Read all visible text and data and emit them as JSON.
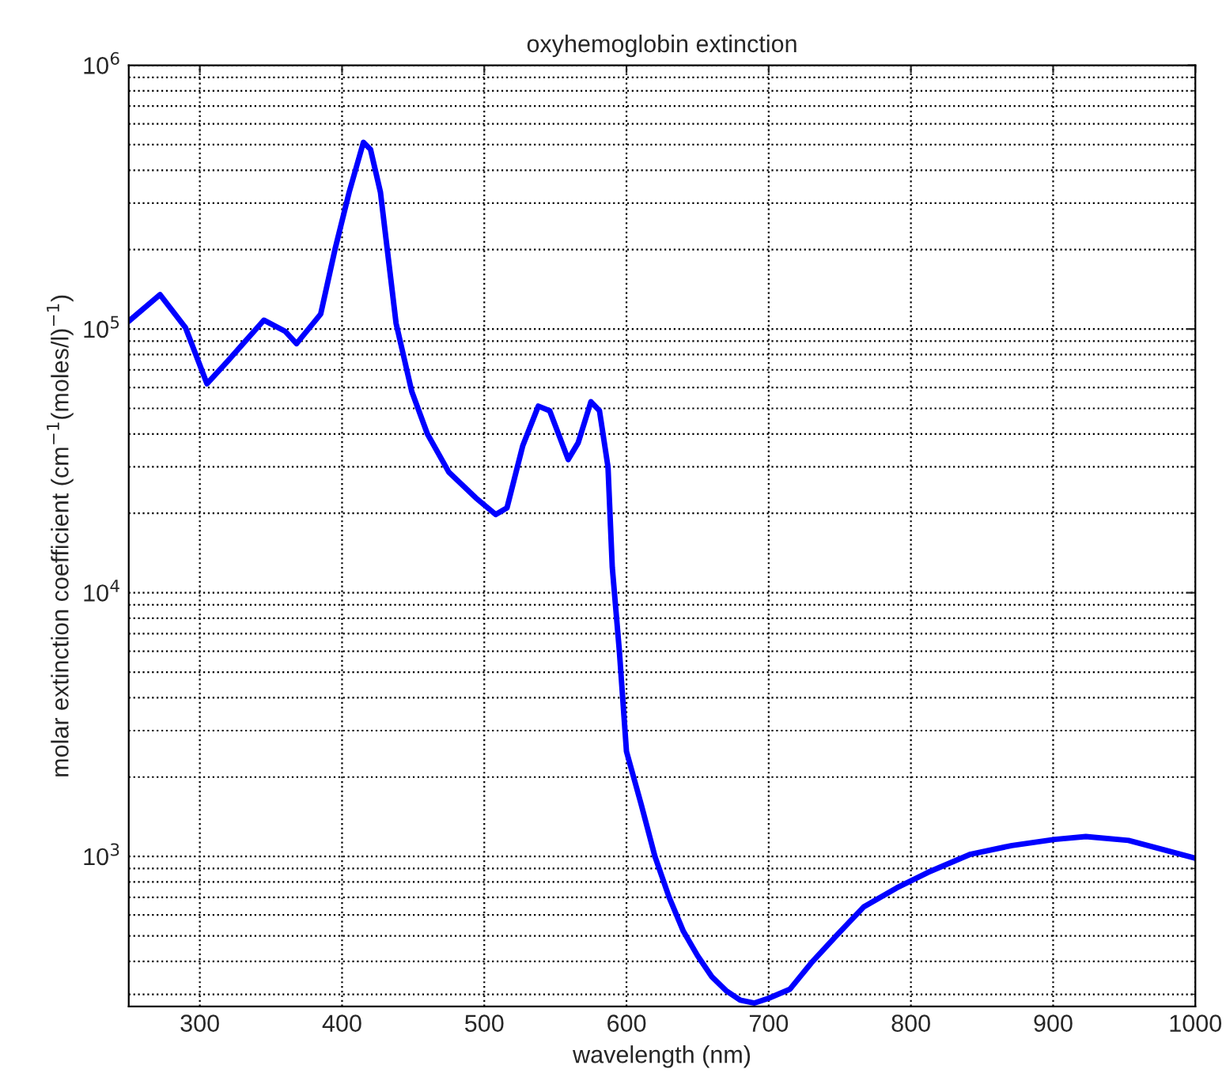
{
  "chart_data": {
    "type": "line",
    "title": "oxyhemoglobin extinction",
    "xlabel": "wavelength (nm)",
    "ylabel": "molar extinction coefficient (cm$^{−1}$(moles/l)$^{−1}$)",
    "log": "y",
    "grid": true,
    "marker": "none",
    "line_style": "solid",
    "xlim": [
      250,
      1000
    ],
    "xticks": [
      300,
      400,
      500,
      600,
      700,
      800,
      900,
      1000
    ],
    "ylim": [
      270,
      1000000
    ],
    "yticks": [
      {
        "value": 1000,
        "label": "10$^{3}$"
      },
      {
        "value": 10000,
        "label": "10$^{4}$"
      },
      {
        "value": 100000,
        "label": "10$^{5}$"
      },
      {
        "value": 1000000,
        "label": "10$^{6}$"
      }
    ],
    "series": [
      {
        "color": "#0000ff",
        "x": [
          250,
          272,
          290,
          305,
          320,
          345,
          360,
          368,
          385,
          395,
          405,
          415,
          420,
          427,
          438,
          449,
          460,
          475,
          494,
          508,
          516,
          527,
          538,
          546,
          559,
          566,
          575,
          581,
          587,
          590,
          595,
          600,
          610,
          620,
          630,
          640,
          650,
          660,
          670,
          680,
          690,
          700,
          715,
          730,
          749,
          767,
          790,
          812,
          842,
          871,
          901,
          923,
          953,
          975,
          1000
        ],
        "values": [
          107000,
          135000,
          101000,
          62000,
          76000,
          108000,
          98000,
          88000,
          114000,
          200000,
          330000,
          510000,
          480000,
          330000,
          105000,
          58000,
          40000,
          28700,
          22900,
          19800,
          21000,
          36000,
          51000,
          49000,
          32000,
          37000,
          53000,
          49000,
          30000,
          12500,
          6000,
          2500,
          1600,
          1000,
          700,
          520,
          420,
          350,
          310,
          285,
          278,
          290,
          314,
          395,
          510,
          645,
          760,
          870,
          1020,
          1100,
          1160,
          1190,
          1150,
          1070,
          985
        ]
      }
    ]
  }
}
